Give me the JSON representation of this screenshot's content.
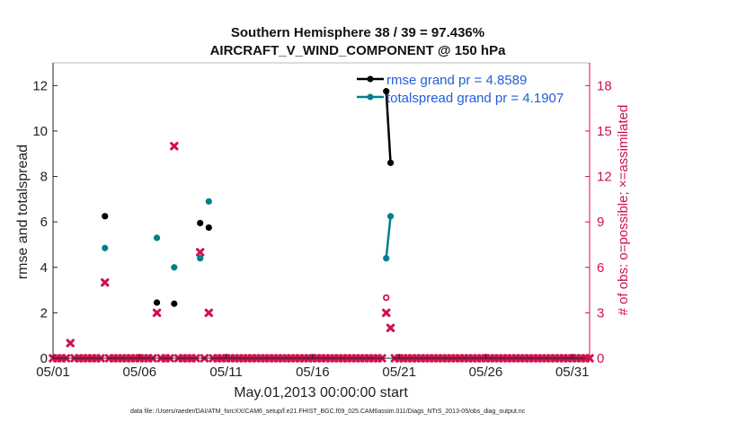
{
  "chart_data": {
    "type": "scatter",
    "title_line1": "Southern Hemisphere 38 / 39 = 97.436%",
    "title_line2": "AIRCRAFT_V_WIND_COMPONENT @ 150 hPa",
    "xlabel": "May.01,2013 00:00:00 start",
    "ylabel_left": "rmse and totalspread",
    "ylabel_right": "# of obs: o=possible; ×=assimilated",
    "footer": "data file: /Users/raeder/DAI/ATM_forcXX/CAM6_setup/f.e21.FHIST_BGC.f09_025.CAM6assim.011/Diags_NTrS_2013-05/obs_diag_output.nc",
    "x_range": [
      1.0,
      32.0
    ],
    "ylim_left": [
      0,
      13
    ],
    "ylim_right": [
      0,
      19.5
    ],
    "x_ticks": [
      1,
      6,
      11,
      16,
      21,
      26,
      31
    ],
    "x_tick_labels": [
      "05/01",
      "05/06",
      "05/11",
      "05/16",
      "05/21",
      "05/26",
      "05/31"
    ],
    "y_ticks_left": [
      0,
      2,
      4,
      6,
      8,
      10,
      12
    ],
    "y_ticks_right": [
      0,
      3,
      6,
      9,
      12,
      15,
      18
    ],
    "colors": {
      "rmse": "#000000",
      "totalspread": "#00808a",
      "obs": "#d0104c",
      "legend_text": "#1f5fd6"
    },
    "series": [
      {
        "name": "rmse grand pr = 4.8589",
        "axis": "left",
        "x": [
          4.0,
          7.0,
          8.0,
          9.5,
          10.0,
          20.25,
          20.5
        ],
        "y": [
          6.25,
          2.45,
          2.4,
          5.95,
          5.75,
          11.75,
          8.6
        ]
      },
      {
        "name": "totalspread grand pr = 4.1907",
        "axis": "left",
        "x": [
          4.0,
          7.0,
          8.0,
          9.5,
          10.0,
          20.25,
          20.5
        ],
        "y": [
          4.85,
          5.3,
          4.0,
          4.4,
          6.9,
          4.4,
          6.25
        ]
      }
    ],
    "connected_segments": [
      [
        20.25,
        20.5
      ]
    ],
    "obs_possible": {
      "x": [
        20.25
      ],
      "y": [
        4.0
      ]
    },
    "obs_assimilated": {
      "x_start": 1.0,
      "x_step": 0.25,
      "count": 125,
      "nonzero": [
        {
          "x": 2.0,
          "y": 1
        },
        {
          "x": 4.0,
          "y": 5
        },
        {
          "x": 7.0,
          "y": 3
        },
        {
          "x": 8.0,
          "y": 14
        },
        {
          "x": 9.5,
          "y": 7
        },
        {
          "x": 10.0,
          "y": 3
        },
        {
          "x": 20.25,
          "y": 3
        },
        {
          "x": 20.5,
          "y": 2
        }
      ]
    }
  }
}
